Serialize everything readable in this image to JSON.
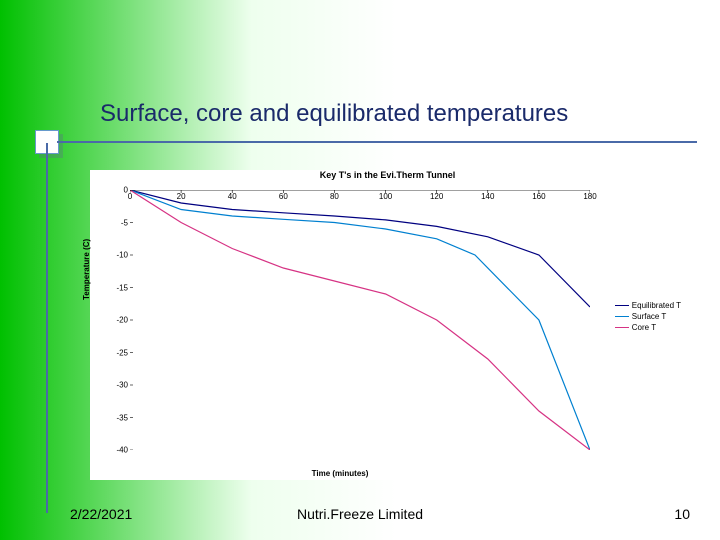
{
  "slide": {
    "title": "Surface, core and equilibrated temperatures",
    "title_color": "#1a2a6a",
    "title_fontsize": 24,
    "background_gradient_from": "#00c000",
    "background_gradient_to": "#ffffff",
    "date": "2/22/2021",
    "company": "Nutri.Freeze Limited",
    "page_number": "10"
  },
  "chart": {
    "type": "line",
    "title": "Key T's in the Evi.Therm Tunnel",
    "title_fontsize": 9,
    "xlabel": "Time (minutes)",
    "ylabel": "Temperature (C)",
    "label_fontsize": 8,
    "xlim": [
      0,
      180
    ],
    "ylim": [
      -40,
      0
    ],
    "xtick_step": 20,
    "ytick_step": 5,
    "xticks": [
      "0",
      "20",
      "40",
      "60",
      "80",
      "100",
      "120",
      "140",
      "160",
      "180"
    ],
    "yticks": [
      "0",
      "-5",
      "-10",
      "-15",
      "-20",
      "-25",
      "-30",
      "-35",
      "-40"
    ],
    "background_color": "#ffffff",
    "grid": false,
    "series": [
      {
        "name": "Equilibrated T",
        "color": "#000080",
        "line_width": 1.2,
        "x": [
          0,
          20,
          40,
          60,
          80,
          100,
          120,
          140,
          160,
          180
        ],
        "y": [
          0,
          -2,
          -3,
          -3.5,
          -4,
          -4.6,
          -5.6,
          -7.2,
          -10,
          -18
        ]
      },
      {
        "name": "Surface T",
        "color": "#0080d0",
        "line_width": 1.2,
        "x": [
          0,
          20,
          40,
          60,
          80,
          100,
          120,
          135,
          160,
          180
        ],
        "y": [
          0,
          -3,
          -4,
          -4.5,
          -5,
          -6,
          -7.5,
          -10,
          -20,
          -40
        ]
      },
      {
        "name": "Core T",
        "color": "#d63384",
        "line_width": 1.2,
        "x": [
          0,
          20,
          40,
          60,
          80,
          100,
          120,
          140,
          160,
          180
        ],
        "y": [
          0,
          -5,
          -9,
          -12,
          -14,
          -16,
          -20,
          -26,
          -34,
          -40
        ]
      }
    ],
    "legend_position": "right",
    "legend_fontsize": 8
  }
}
